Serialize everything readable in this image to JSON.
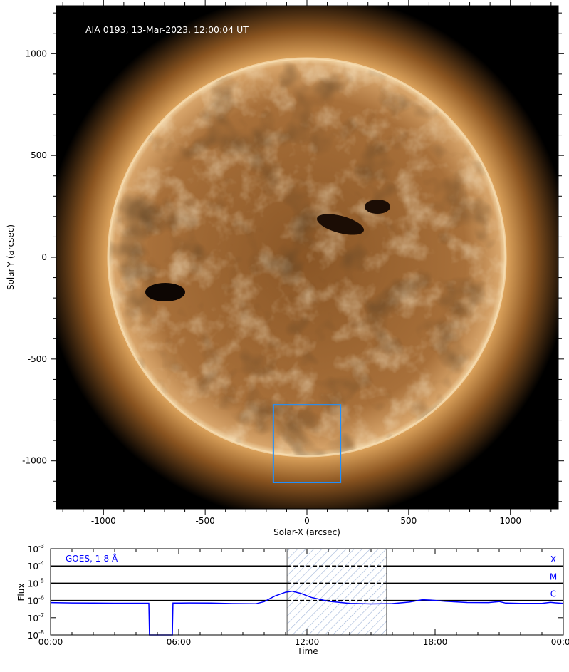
{
  "chart_data": [
    {
      "type": "image",
      "title": "AIA 0193, 13-Mar-2023, 12:00:04 UT",
      "xlabel": "Solar-X (arcsec)",
      "ylabel": "Solar-Y (arcsec)",
      "xlim": [
        -1235,
        1235
      ],
      "ylim": [
        -1235,
        1235
      ],
      "xticks": [
        -1000,
        -500,
        0,
        500,
        1000
      ],
      "yticks": [
        -1000,
        -500,
        0,
        500,
        1000
      ],
      "xtick_labels": [
        "-1000",
        "-500",
        "0",
        "500",
        "1000"
      ],
      "ytick_labels": [
        "-1000",
        "-500",
        "0",
        "500",
        "1000"
      ],
      "solar_radius_arcsec": 975,
      "colormap": "sdoaia193",
      "region_box": {
        "x": [
          -165,
          165
        ],
        "y": [
          -1106,
          -725
        ],
        "color": "#1e90ff"
      }
    },
    {
      "type": "line",
      "xlabel": "Time",
      "ylabel": "Flux",
      "yscale": "log",
      "ylim": [
        1e-08,
        0.001
      ],
      "xlim": [
        0,
        24
      ],
      "xtick_labels": [
        "00:00",
        "06:00",
        "12:00",
        "18:00",
        "00:00"
      ],
      "ytick_labels": [
        {
          "base": "10",
          "exp": "-3"
        },
        {
          "base": "10",
          "exp": "-4"
        },
        {
          "base": "10",
          "exp": "-5"
        },
        {
          "base": "10",
          "exp": "-6"
        },
        {
          "base": "10",
          "exp": "-7"
        },
        {
          "base": "10",
          "exp": "-8"
        }
      ],
      "legend_text": "GOES, 1-8 Å",
      "series_color": "#0000ff",
      "flare_levels": [
        {
          "label": "X",
          "value": 0.0001
        },
        {
          "label": "M",
          "value": 1e-05
        },
        {
          "label": "C",
          "value": 1e-06
        }
      ],
      "shaded_interval_hours": [
        11.07,
        15.73
      ],
      "series": [
        {
          "x": [
            0,
            1,
            2,
            3,
            4,
            4.6,
            4.63,
            5.7,
            5.73,
            6.5,
            7.5,
            8.5,
            9.6,
            10.0,
            10.5,
            11.0,
            11.3,
            11.7,
            12.2,
            13.0,
            14.0,
            15.0,
            16.0,
            16.8,
            17.4,
            17.8,
            18.5,
            19.5,
            20.5,
            21.0,
            21.3,
            22.0,
            23.0,
            23.4,
            23.6,
            24.0
          ],
          "y": [
            7.5e-07,
            7.2e-07,
            7e-07,
            6.9e-07,
            6.9e-07,
            6.9e-07,
            1e-08,
            1e-08,
            7e-07,
            7.2e-07,
            7e-07,
            6.6e-07,
            6.4e-07,
            8.5e-07,
            1.8e-06,
            3e-06,
            3.4e-06,
            2.6e-06,
            1.5e-06,
            9e-07,
            6.8e-07,
            6.3e-07,
            6.6e-07,
            8e-07,
            1.1e-06,
            1.05e-06,
            8.8e-07,
            7.6e-07,
            7.5e-07,
            8.6e-07,
            7e-07,
            6.7e-07,
            6.8e-07,
            7.8e-07,
            7.3e-07,
            6.8e-07
          ]
        }
      ]
    }
  ]
}
